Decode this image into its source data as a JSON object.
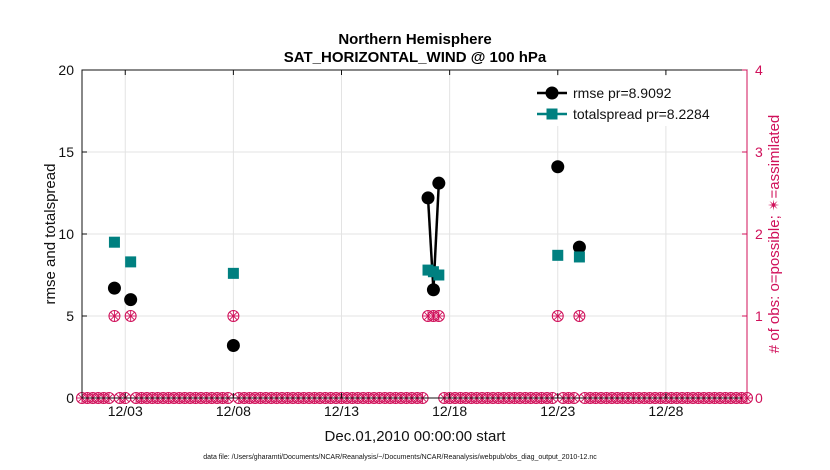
{
  "chart_data": {
    "type": "scatter",
    "title": "Northern Hemisphere",
    "subtitle": "SAT_HORIZONTAL_WIND @ 100 hPa",
    "xlabel": "Dec.01,2010 00:00:00 start",
    "ylabel": "rmse and totalspread",
    "y2label": "# of obs: o=possible; ✴=assimilated",
    "footnote": "data file: /Users/gharamti/Documents/NCAR/Reanalysis/~/Documents/NCAR/Reanalysis/webpub/obs_diag_output_2010-12.nc",
    "xlim": [
      1.0,
      31.75
    ],
    "ylim": [
      0,
      20
    ],
    "y2lim": [
      0,
      4
    ],
    "x_ticks": [
      {
        "value": 3,
        "label": "12/03"
      },
      {
        "value": 8,
        "label": "12/08"
      },
      {
        "value": 13,
        "label": "12/13"
      },
      {
        "value": 18,
        "label": "12/18"
      },
      {
        "value": 23,
        "label": "12/23"
      },
      {
        "value": 28,
        "label": "12/28"
      }
    ],
    "y_ticks": [
      "0",
      "5",
      "10",
      "15",
      "20"
    ],
    "y2_ticks": [
      "0",
      "1",
      "2",
      "3",
      "4"
    ],
    "grid": true,
    "legend_position": "top-right",
    "series": [
      {
        "name": "rmse",
        "legend": "rmse pr=8.9092",
        "color": "#000000",
        "marker": "circle",
        "points": [
          {
            "x": 2.5,
            "y": 6.7
          },
          {
            "x": 3.25,
            "y": 6.0
          },
          {
            "x": 8.0,
            "y": 3.2
          },
          {
            "x": 17.0,
            "y": 12.2
          },
          {
            "x": 17.25,
            "y": 6.6
          },
          {
            "x": 17.5,
            "y": 13.1
          },
          {
            "x": 23.0,
            "y": 14.1
          },
          {
            "x": 24.0,
            "y": 9.2
          }
        ],
        "segments": [
          [
            3,
            4
          ],
          [
            4,
            5
          ]
        ]
      },
      {
        "name": "totalspread",
        "legend": "totalspread pr=8.2284",
        "color": "#008080",
        "marker": "square",
        "points": [
          {
            "x": 2.5,
            "y": 9.5
          },
          {
            "x": 3.25,
            "y": 8.3
          },
          {
            "x": 8.0,
            "y": 7.6
          },
          {
            "x": 17.0,
            "y": 7.8
          },
          {
            "x": 17.25,
            "y": 7.7
          },
          {
            "x": 17.5,
            "y": 7.5
          },
          {
            "x": 23.0,
            "y": 8.7
          },
          {
            "x": 24.0,
            "y": 8.6
          }
        ],
        "segments": [
          [
            3,
            4
          ],
          [
            4,
            5
          ]
        ]
      },
      {
        "name": "obs_possible_assimilated",
        "color": "#d0105a",
        "axis": "right",
        "marker": "circle-star",
        "value_one_at": [
          2.5,
          3.25,
          8.0,
          17.0,
          17.25,
          17.5,
          23.0,
          24.0
        ],
        "start": 1.0,
        "step": 0.25,
        "count": 124
      }
    ]
  }
}
